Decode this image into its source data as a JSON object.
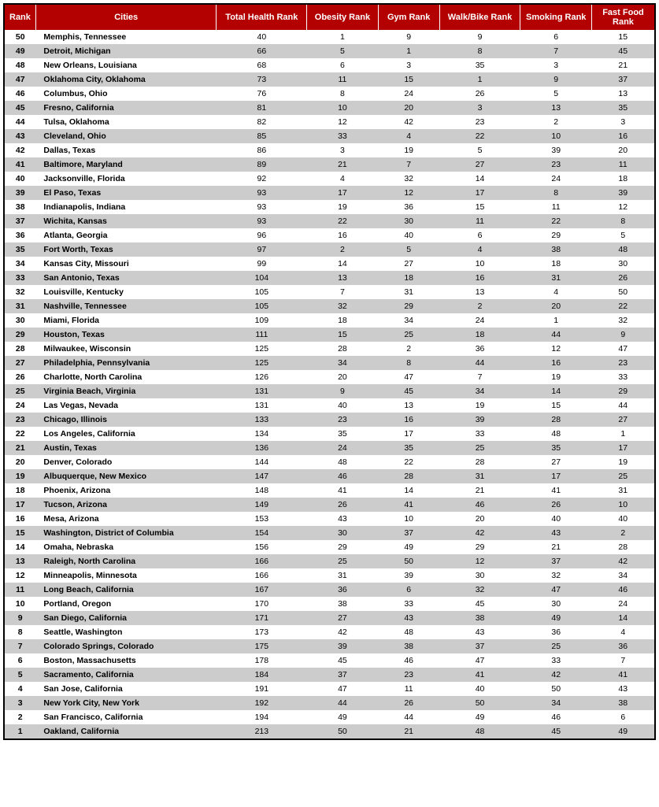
{
  "table": {
    "header_bg": "#b30000",
    "header_fg": "#ffffff",
    "row_even_bg": "#ffffff",
    "row_odd_bg": "#cccccc",
    "border_color": "#000000",
    "columns": [
      {
        "key": "rank",
        "label": "Rank",
        "align": "center",
        "bold": true
      },
      {
        "key": "city",
        "label": "Cities",
        "align": "left",
        "bold": true
      },
      {
        "key": "total",
        "label": "Total Health Rank",
        "align": "center"
      },
      {
        "key": "obesity",
        "label": "Obesity Rank",
        "align": "center"
      },
      {
        "key": "gym",
        "label": "Gym Rank",
        "align": "center"
      },
      {
        "key": "walkbike",
        "label": "Walk/Bike Rank",
        "align": "center"
      },
      {
        "key": "smoking",
        "label": "Smoking Rank",
        "align": "center"
      },
      {
        "key": "fastfood",
        "label": "Fast Food Rank",
        "align": "center"
      }
    ],
    "rows": [
      {
        "rank": 50,
        "city": "Memphis, Tennessee",
        "total": 40,
        "obesity": 1,
        "gym": 9,
        "walkbike": 9,
        "smoking": 6,
        "fastfood": 15
      },
      {
        "rank": 49,
        "city": "Detroit, Michigan",
        "total": 66,
        "obesity": 5,
        "gym": 1,
        "walkbike": 8,
        "smoking": 7,
        "fastfood": 45
      },
      {
        "rank": 48,
        "city": "New Orleans, Louisiana",
        "total": 68,
        "obesity": 6,
        "gym": 3,
        "walkbike": 35,
        "smoking": 3,
        "fastfood": 21
      },
      {
        "rank": 47,
        "city": "Oklahoma City, Oklahoma",
        "total": 73,
        "obesity": 11,
        "gym": 15,
        "walkbike": 1,
        "smoking": 9,
        "fastfood": 37
      },
      {
        "rank": 46,
        "city": "Columbus, Ohio",
        "total": 76,
        "obesity": 8,
        "gym": 24,
        "walkbike": 26,
        "smoking": 5,
        "fastfood": 13
      },
      {
        "rank": 45,
        "city": "Fresno, California",
        "total": 81,
        "obesity": 10,
        "gym": 20,
        "walkbike": 3,
        "smoking": 13,
        "fastfood": 35
      },
      {
        "rank": 44,
        "city": "Tulsa, Oklahoma",
        "total": 82,
        "obesity": 12,
        "gym": 42,
        "walkbike": 23,
        "smoking": 2,
        "fastfood": 3
      },
      {
        "rank": 43,
        "city": "Cleveland, Ohio",
        "total": 85,
        "obesity": 33,
        "gym": 4,
        "walkbike": 22,
        "smoking": 10,
        "fastfood": 16
      },
      {
        "rank": 42,
        "city": "Dallas, Texas",
        "total": 86,
        "obesity": 3,
        "gym": 19,
        "walkbike": 5,
        "smoking": 39,
        "fastfood": 20
      },
      {
        "rank": 41,
        "city": "Baltimore, Maryland",
        "total": 89,
        "obesity": 21,
        "gym": 7,
        "walkbike": 27,
        "smoking": 23,
        "fastfood": 11
      },
      {
        "rank": 40,
        "city": "Jacksonville, Florida",
        "total": 92,
        "obesity": 4,
        "gym": 32,
        "walkbike": 14,
        "smoking": 24,
        "fastfood": 18
      },
      {
        "rank": 39,
        "city": "El Paso, Texas",
        "total": 93,
        "obesity": 17,
        "gym": 12,
        "walkbike": 17,
        "smoking": 8,
        "fastfood": 39
      },
      {
        "rank": 38,
        "city": "Indianapolis, Indiana",
        "total": 93,
        "obesity": 19,
        "gym": 36,
        "walkbike": 15,
        "smoking": 11,
        "fastfood": 12
      },
      {
        "rank": 37,
        "city": "Wichita, Kansas",
        "total": 93,
        "obesity": 22,
        "gym": 30,
        "walkbike": 11,
        "smoking": 22,
        "fastfood": 8
      },
      {
        "rank": 36,
        "city": "Atlanta, Georgia",
        "total": 96,
        "obesity": 16,
        "gym": 40,
        "walkbike": 6,
        "smoking": 29,
        "fastfood": 5
      },
      {
        "rank": 35,
        "city": "Fort Worth, Texas",
        "total": 97,
        "obesity": 2,
        "gym": 5,
        "walkbike": 4,
        "smoking": 38,
        "fastfood": 48
      },
      {
        "rank": 34,
        "city": "Kansas City, Missouri",
        "total": 99,
        "obesity": 14,
        "gym": 27,
        "walkbike": 10,
        "smoking": 18,
        "fastfood": 30
      },
      {
        "rank": 33,
        "city": "San Antonio, Texas",
        "total": 104,
        "obesity": 13,
        "gym": 18,
        "walkbike": 16,
        "smoking": 31,
        "fastfood": 26
      },
      {
        "rank": 32,
        "city": "Louisville, Kentucky",
        "total": 105,
        "obesity": 7,
        "gym": 31,
        "walkbike": 13,
        "smoking": 4,
        "fastfood": 50
      },
      {
        "rank": 31,
        "city": "Nashville, Tennessee",
        "total": 105,
        "obesity": 32,
        "gym": 29,
        "walkbike": 2,
        "smoking": 20,
        "fastfood": 22
      },
      {
        "rank": 30,
        "city": "Miami, Florida",
        "total": 109,
        "obesity": 18,
        "gym": 34,
        "walkbike": 24,
        "smoking": 1,
        "fastfood": 32
      },
      {
        "rank": 29,
        "city": "Houston, Texas",
        "total": 111,
        "obesity": 15,
        "gym": 25,
        "walkbike": 18,
        "smoking": 44,
        "fastfood": 9
      },
      {
        "rank": 28,
        "city": "Milwaukee, Wisconsin",
        "total": 125,
        "obesity": 28,
        "gym": 2,
        "walkbike": 36,
        "smoking": 12,
        "fastfood": 47
      },
      {
        "rank": 27,
        "city": "Philadelphia, Pennsylvania",
        "total": 125,
        "obesity": 34,
        "gym": 8,
        "walkbike": 44,
        "smoking": 16,
        "fastfood": 23
      },
      {
        "rank": 26,
        "city": "Charlotte, North Carolina",
        "total": 126,
        "obesity": 20,
        "gym": 47,
        "walkbike": 7,
        "smoking": 19,
        "fastfood": 33
      },
      {
        "rank": 25,
        "city": "Virginia Beach, Virginia",
        "total": 131,
        "obesity": 9,
        "gym": 45,
        "walkbike": 34,
        "smoking": 14,
        "fastfood": 29
      },
      {
        "rank": 24,
        "city": "Las Vegas, Nevada",
        "total": 131,
        "obesity": 40,
        "gym": 13,
        "walkbike": 19,
        "smoking": 15,
        "fastfood": 44
      },
      {
        "rank": 23,
        "city": "Chicago, Illinois",
        "total": 133,
        "obesity": 23,
        "gym": 16,
        "walkbike": 39,
        "smoking": 28,
        "fastfood": 27
      },
      {
        "rank": 22,
        "city": "Los Angeles, California",
        "total": 134,
        "obesity": 35,
        "gym": 17,
        "walkbike": 33,
        "smoking": 48,
        "fastfood": 1
      },
      {
        "rank": 21,
        "city": "Austin, Texas",
        "total": 136,
        "obesity": 24,
        "gym": 35,
        "walkbike": 25,
        "smoking": 35,
        "fastfood": 17
      },
      {
        "rank": 20,
        "city": "Denver, Colorado",
        "total": 144,
        "obesity": 48,
        "gym": 22,
        "walkbike": 28,
        "smoking": 27,
        "fastfood": 19
      },
      {
        "rank": 19,
        "city": "Albuquerque, New Mexico",
        "total": 147,
        "obesity": 46,
        "gym": 28,
        "walkbike": 31,
        "smoking": 17,
        "fastfood": 25
      },
      {
        "rank": 18,
        "city": "Phoenix, Arizona",
        "total": 148,
        "obesity": 41,
        "gym": 14,
        "walkbike": 21,
        "smoking": 41,
        "fastfood": 31
      },
      {
        "rank": 17,
        "city": "Tucson, Arizona",
        "total": 149,
        "obesity": 26,
        "gym": 41,
        "walkbike": 46,
        "smoking": 26,
        "fastfood": 10
      },
      {
        "rank": 16,
        "city": "Mesa, Arizona",
        "total": 153,
        "obesity": 43,
        "gym": 10,
        "walkbike": 20,
        "smoking": 40,
        "fastfood": 40
      },
      {
        "rank": 15,
        "city": "Washington, District of Columbia",
        "total": 154,
        "obesity": 30,
        "gym": 37,
        "walkbike": 42,
        "smoking": 43,
        "fastfood": 2
      },
      {
        "rank": 14,
        "city": "Omaha, Nebraska",
        "total": 156,
        "obesity": 29,
        "gym": 49,
        "walkbike": 29,
        "smoking": 21,
        "fastfood": 28
      },
      {
        "rank": 13,
        "city": "Raleigh, North Carolina",
        "total": 166,
        "obesity": 25,
        "gym": 50,
        "walkbike": 12,
        "smoking": 37,
        "fastfood": 42
      },
      {
        "rank": 12,
        "city": "Minneapolis, Minnesota",
        "total": 166,
        "obesity": 31,
        "gym": 39,
        "walkbike": 30,
        "smoking": 32,
        "fastfood": 34
      },
      {
        "rank": 11,
        "city": "Long Beach, California",
        "total": 167,
        "obesity": 36,
        "gym": 6,
        "walkbike": 32,
        "smoking": 47,
        "fastfood": 46
      },
      {
        "rank": 10,
        "city": "Portland, Oregon",
        "total": 170,
        "obesity": 38,
        "gym": 33,
        "walkbike": 45,
        "smoking": 30,
        "fastfood": 24
      },
      {
        "rank": 9,
        "city": "San Diego, California",
        "total": 171,
        "obesity": 27,
        "gym": 43,
        "walkbike": 38,
        "smoking": 49,
        "fastfood": 14
      },
      {
        "rank": 8,
        "city": "Seattle, Washington",
        "total": 173,
        "obesity": 42,
        "gym": 48,
        "walkbike": 43,
        "smoking": 36,
        "fastfood": 4
      },
      {
        "rank": 7,
        "city": "Colorado Springs, Colorado",
        "total": 175,
        "obesity": 39,
        "gym": 38,
        "walkbike": 37,
        "smoking": 25,
        "fastfood": 36
      },
      {
        "rank": 6,
        "city": "Boston, Massachusetts",
        "total": 178,
        "obesity": 45,
        "gym": 46,
        "walkbike": 47,
        "smoking": 33,
        "fastfood": 7
      },
      {
        "rank": 5,
        "city": "Sacramento, California",
        "total": 184,
        "obesity": 37,
        "gym": 23,
        "walkbike": 41,
        "smoking": 42,
        "fastfood": 41
      },
      {
        "rank": 4,
        "city": "San Jose, California",
        "total": 191,
        "obesity": 47,
        "gym": 11,
        "walkbike": 40,
        "smoking": 50,
        "fastfood": 43
      },
      {
        "rank": 3,
        "city": "New York City, New York",
        "total": 192,
        "obesity": 44,
        "gym": 26,
        "walkbike": 50,
        "smoking": 34,
        "fastfood": 38
      },
      {
        "rank": 2,
        "city": "San Francisco, California",
        "total": 194,
        "obesity": 49,
        "gym": 44,
        "walkbike": 49,
        "smoking": 46,
        "fastfood": 6
      },
      {
        "rank": 1,
        "city": "Oakland, California",
        "total": 213,
        "obesity": 50,
        "gym": 21,
        "walkbike": 48,
        "smoking": 45,
        "fastfood": 49
      }
    ]
  }
}
